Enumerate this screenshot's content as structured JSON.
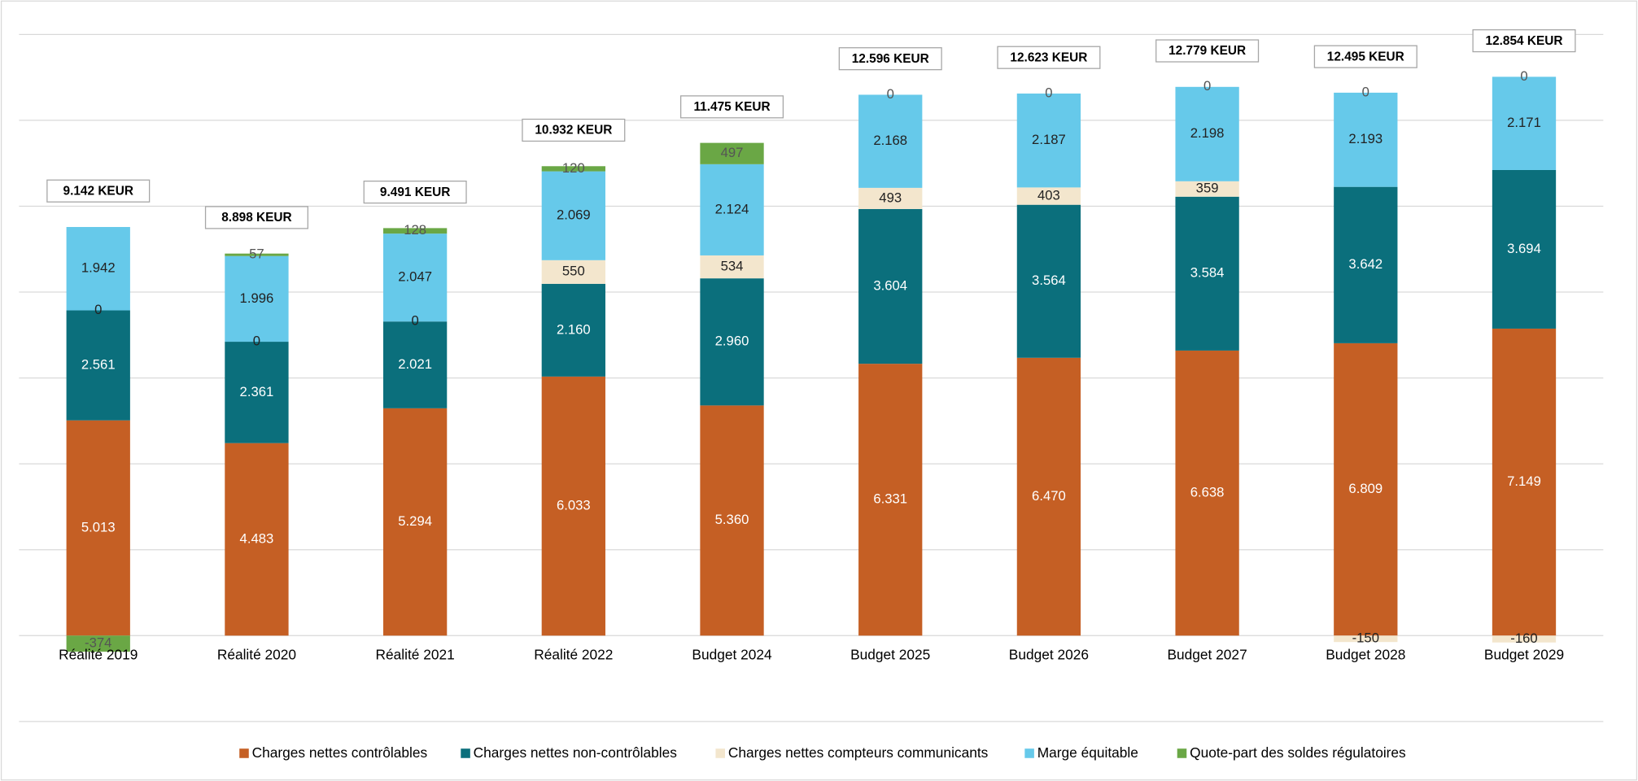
{
  "chart_data": {
    "type": "stacked_bar",
    "categories": [
      "Réalité 2019",
      "Réalité 2020",
      "Réalité 2021",
      "Réalité 2022",
      "Budget 2024",
      "Budget 2025",
      "Budget 2026",
      "Budget 2027",
      "Budget 2028",
      "Budget 2029"
    ],
    "total_labels": [
      "9.142 KEUR",
      "8.898 KEUR",
      "9.491 KEUR",
      "10.932 KEUR",
      "11.475 KEUR",
      "12.596 KEUR",
      "12.623 KEUR",
      "12.779 KEUR",
      "12.495 KEUR",
      "12.854 KEUR"
    ],
    "series": [
      {
        "name": "Charges nettes contrôlables",
        "color": "#c55f24",
        "values": [
          5013,
          4483,
          5294,
          6033,
          5360,
          6331,
          6470,
          6638,
          6809,
          7149
        ],
        "value_labels": [
          "5.013",
          "4.483",
          "5.294",
          "6.033",
          "5.360",
          "6.331",
          "6.470",
          "6.638",
          "6.809",
          "7.149"
        ]
      },
      {
        "name": "Charges nettes non-contrôlables",
        "color": "#0b6f7c",
        "values": [
          2561,
          2361,
          2021,
          2160,
          2960,
          3604,
          3564,
          3584,
          3642,
          3694
        ],
        "value_labels": [
          "2.561",
          "2.361",
          "2.021",
          "2.160",
          "2.960",
          "3.604",
          "3.564",
          "3.584",
          "3.642",
          "3.694"
        ]
      },
      {
        "name": "Charges nettes compteurs communicants",
        "color": "#f3e6cd",
        "values": [
          0,
          0,
          0,
          550,
          534,
          493,
          403,
          359,
          -150,
          -160
        ]
      },
      {
        "name": "Marge équitable",
        "color": "#66c9ea",
        "values": [
          1942,
          1996,
          2047,
          2069,
          2124,
          2168,
          2187,
          2198,
          2193,
          2171
        ],
        "value_labels": [
          "1.942",
          "1.996",
          "2.047",
          "2.069",
          "2.124",
          "2.168",
          "2.187",
          "2.198",
          "2.193",
          "2.171"
        ]
      },
      {
        "name": "Quote-part des soldes régulatoires",
        "color": "#6aa745",
        "values": [
          -374,
          57,
          128,
          120,
          497,
          0,
          0,
          0,
          0,
          0
        ]
      }
    ],
    "ylim": [
      -2000,
      14000
    ],
    "yticks": [
      -2000,
      0,
      2000,
      4000,
      6000,
      8000,
      10000,
      12000,
      14000
    ],
    "grid": true
  }
}
